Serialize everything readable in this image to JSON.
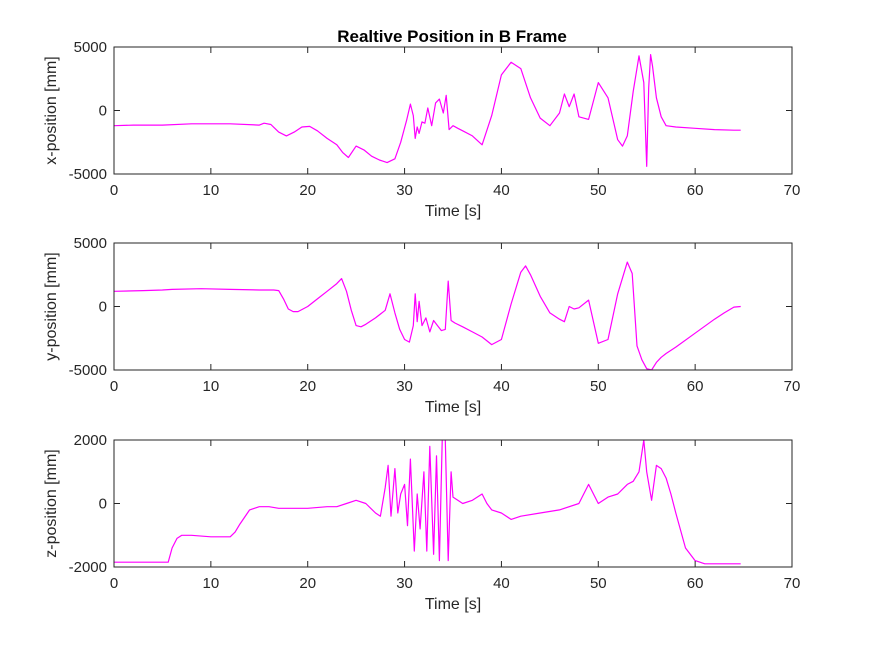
{
  "figure": {
    "title": "Realtive Position in B Frame",
    "line_color": "#ff00ff"
  },
  "chart_data": [
    {
      "type": "line",
      "title": "Realtive Position in B Frame",
      "xlabel": "Time [s]",
      "ylabel": "x-position [mm]",
      "xlim": [
        0,
        70
      ],
      "ylim": [
        -5000,
        5000
      ],
      "xticks": [
        "0",
        "10",
        "20",
        "30",
        "40",
        "50",
        "60",
        "70"
      ],
      "yticks": [
        "-5000",
        "0",
        "5000"
      ],
      "grid": false,
      "x": [
        0,
        2,
        5,
        8,
        12,
        15,
        15.5,
        16.2,
        17,
        17.8,
        18.6,
        19.4,
        20.2,
        21,
        22,
        23,
        23.6,
        24.2,
        25,
        25.8,
        26.6,
        27.4,
        28.2,
        29,
        29.6,
        30.2,
        30.6,
        30.9,
        31.1,
        31.3,
        31.5,
        31.8,
        32.1,
        32.4,
        32.8,
        33.2,
        33.6,
        34,
        34.3,
        34.6,
        35,
        35.5,
        36,
        37,
        38,
        39,
        40,
        41,
        42,
        43,
        44,
        45,
        46,
        46.5,
        47,
        47.5,
        48,
        49,
        50,
        51,
        52,
        52.5,
        53,
        53.6,
        54.2,
        54.7,
        55,
        55.2,
        55.4,
        55.6,
        56,
        56.5,
        57,
        58,
        60,
        62,
        64,
        64.7
      ],
      "y": [
        -1200,
        -1150,
        -1150,
        -1050,
        -1050,
        -1150,
        -1000,
        -1100,
        -1700,
        -2000,
        -1700,
        -1300,
        -1250,
        -1600,
        -2200,
        -2700,
        -3300,
        -3700,
        -2800,
        -3100,
        -3600,
        -3900,
        -4100,
        -3800,
        -2500,
        -800,
        500,
        -400,
        -2200,
        -1300,
        -1800,
        -900,
        -1000,
        200,
        -1200,
        600,
        900,
        -200,
        1200,
        -1500,
        -1200,
        -1400,
        -1600,
        -2000,
        -2700,
        -400,
        2800,
        3800,
        3300,
        1000,
        -600,
        -1200,
        -200,
        1300,
        300,
        1300,
        -500,
        -700,
        2200,
        1000,
        -2300,
        -2800,
        -2000,
        1500,
        4300,
        2200,
        -4400,
        1800,
        4400,
        3500,
        1000,
        -500,
        -1200,
        -1300,
        -1400,
        -1500,
        -1550,
        -1550
      ],
      "series": []
    },
    {
      "type": "line",
      "xlabel": "Time [s]",
      "ylabel": "y-position [mm]",
      "xlim": [
        0,
        70
      ],
      "ylim": [
        -5000,
        5000
      ],
      "xticks": [
        "0",
        "10",
        "20",
        "30",
        "40",
        "50",
        "60",
        "70"
      ],
      "yticks": [
        "-5000",
        "0",
        "5000"
      ],
      "grid": false,
      "x": [
        0,
        3,
        5,
        6,
        9,
        12,
        15,
        16.5,
        17,
        17.5,
        18,
        18.5,
        19,
        20,
        21,
        22,
        23,
        23.5,
        24,
        24.5,
        25,
        25.5,
        26,
        27,
        28,
        28.5,
        29,
        29.5,
        30,
        30.5,
        30.9,
        31.1,
        31.3,
        31.5,
        31.8,
        32.2,
        32.6,
        33,
        33.4,
        33.8,
        34.2,
        34.5,
        34.8,
        35.2,
        36,
        37,
        38,
        39,
        40,
        41,
        42,
        42.5,
        43,
        44,
        45,
        46,
        46.5,
        47,
        47.5,
        48,
        49,
        50,
        51,
        52,
        53,
        53.5,
        54,
        54.5,
        55,
        55.5,
        56,
        56.5,
        57,
        58,
        60,
        62,
        63,
        64,
        64.7
      ],
      "y": [
        1200,
        1250,
        1300,
        1350,
        1400,
        1350,
        1300,
        1300,
        1250,
        600,
        -200,
        -400,
        -400,
        0,
        600,
        1200,
        1800,
        2200,
        1200,
        -300,
        -1500,
        -1600,
        -1400,
        -900,
        -300,
        1000,
        -500,
        -1800,
        -2600,
        -2800,
        -1500,
        1000,
        -1200,
        400,
        -1500,
        -900,
        -2000,
        -1100,
        -1500,
        -1900,
        -1800,
        2000,
        -1100,
        -1300,
        -1600,
        -2000,
        -2400,
        -3000,
        -2600,
        200,
        2700,
        3200,
        2500,
        800,
        -500,
        -1000,
        -1200,
        0,
        -200,
        -100,
        500,
        -2900,
        -2600,
        1000,
        3500,
        2600,
        -3100,
        -4200,
        -4900,
        -5000,
        -4400,
        -4000,
        -3700,
        -3200,
        -2100,
        -1000,
        -500,
        -50,
        0
      ],
      "series": []
    },
    {
      "type": "line",
      "xlabel": "Time [s]",
      "ylabel": "z-position [mm]",
      "xlim": [
        0,
        70
      ],
      "ylim": [
        -2000,
        2000
      ],
      "xticks": [
        "0",
        "10",
        "20",
        "30",
        "40",
        "50",
        "60",
        "70"
      ],
      "yticks": [
        "-2000",
        "0",
        "2000"
      ],
      "grid": false,
      "x": [
        0,
        3,
        5.6,
        6,
        6.5,
        7,
        8,
        10,
        12,
        12.5,
        13,
        14,
        14.5,
        15,
        16,
        17,
        18,
        20,
        22,
        23,
        24,
        25,
        26,
        27,
        27.5,
        28,
        28.3,
        28.6,
        29,
        29.3,
        29.6,
        30,
        30.3,
        30.6,
        31,
        31.3,
        31.6,
        32,
        32.3,
        32.6,
        33,
        33.3,
        33.6,
        33.9,
        34.2,
        34.5,
        34.8,
        35,
        35.5,
        36,
        37,
        38,
        38.5,
        39,
        40,
        41,
        42,
        44,
        46,
        48,
        49,
        50,
        51,
        52,
        53,
        53.6,
        54.2,
        54.7,
        55,
        55.5,
        56,
        56.5,
        57,
        57.5,
        58,
        59,
        60,
        61,
        62,
        63,
        64.7
      ],
      "y": [
        -1850,
        -1850,
        -1850,
        -1400,
        -1100,
        -1000,
        -1000,
        -1050,
        -1050,
        -900,
        -650,
        -200,
        -150,
        -100,
        -100,
        -150,
        -150,
        -150,
        -100,
        -100,
        0,
        100,
        0,
        -300,
        -400,
        500,
        1200,
        -400,
        1100,
        -300,
        300,
        600,
        -700,
        1400,
        -1500,
        300,
        -800,
        1000,
        -1500,
        1800,
        -1600,
        1500,
        -1800,
        2100,
        2000,
        -1800,
        1000,
        200,
        100,
        0,
        100,
        300,
        0,
        -200,
        -300,
        -500,
        -400,
        -300,
        -200,
        0,
        600,
        0,
        200,
        300,
        600,
        700,
        1000,
        2000,
        1000,
        100,
        1200,
        1100,
        800,
        300,
        -300,
        -1400,
        -1800,
        -1900,
        -1900,
        -1900,
        -1900
      ],
      "series": []
    }
  ]
}
